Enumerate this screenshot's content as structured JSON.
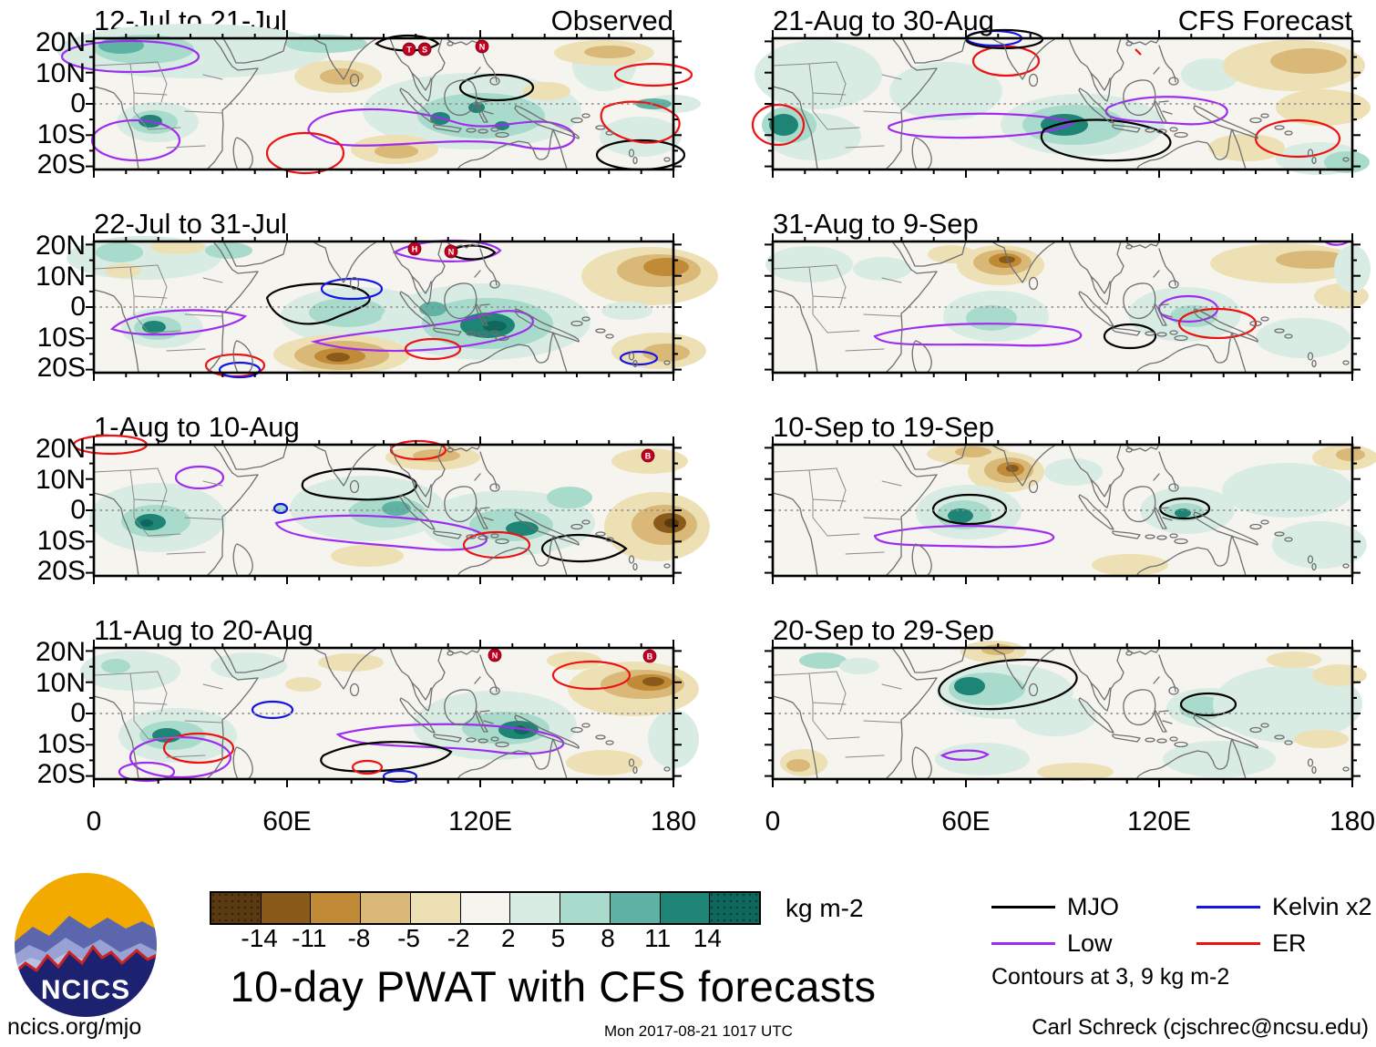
{
  "chart_data": {
    "type": "heatmap",
    "title": "10-day PWAT with CFS forecasts",
    "units": "kg m-2",
    "panels": [
      {
        "title": "12-Jul to 21-Jul",
        "column": "Observed",
        "corner_label": "Observed",
        "cyclones": [
          "T",
          "S",
          "N"
        ]
      },
      {
        "title": "21-Aug to 30-Aug",
        "column": "CFS Forecast",
        "corner_label": "CFS Forecast",
        "cyclones": []
      },
      {
        "title": "22-Jul to 31-Jul",
        "column": "Observed",
        "corner_label": "",
        "cyclones": [
          "H",
          "N"
        ]
      },
      {
        "title": "31-Aug to 9-Sep",
        "column": "CFS Forecast",
        "corner_label": "",
        "cyclones": []
      },
      {
        "title": "1-Aug to 10-Aug",
        "column": "Observed",
        "corner_label": "",
        "cyclones": [
          "B"
        ]
      },
      {
        "title": "10-Sep to 19-Sep",
        "column": "CFS Forecast",
        "corner_label": "",
        "cyclones": []
      },
      {
        "title": "11-Aug to 20-Aug",
        "column": "Observed",
        "corner_label": "",
        "cyclones": [
          "N",
          "B"
        ]
      },
      {
        "title": "20-Sep to 29-Sep",
        "column": "CFS Forecast",
        "corner_label": "",
        "cyclones": []
      }
    ],
    "x_axis": {
      "ticks": [
        "0",
        "60E",
        "120E",
        "180"
      ],
      "range_deg_lon": [
        0,
        180
      ]
    },
    "y_axis": {
      "ticks": [
        "20N",
        "10N",
        "0",
        "10S",
        "20S"
      ],
      "range_deg_lat": [
        21,
        -21
      ]
    },
    "colorbar_levels": [
      "-14",
      "-11",
      "-8",
      "-5",
      "-2",
      "2",
      "5",
      "8",
      "11",
      "14"
    ],
    "colorbar_colors": [
      "#5a3a10",
      "#8a5a1b",
      "#c08a36",
      "#d9b878",
      "#eee0b5",
      "#f5f4ef",
      "#d9ece4",
      "#a8dbcb",
      "#5fb3a4",
      "#1d8476",
      "#0f685d"
    ],
    "contour_legend": [
      {
        "label": "MJO",
        "color": "#000000"
      },
      {
        "label": "Low",
        "color": "#a02cf0"
      },
      {
        "label": "Kelvin x2",
        "color": "#1414e6"
      },
      {
        "label": "ER",
        "color": "#ee1111"
      }
    ],
    "contour_note": "Contours at 3, 9 kg m-2"
  },
  "footer": {
    "site": "ncics.org/mjo",
    "timestamp": "Mon 2017-08-21 1017 UTC",
    "credit": "Carl Schreck (cjschrec@ncsu.edu)"
  },
  "logo": {
    "text": "NCICS"
  }
}
